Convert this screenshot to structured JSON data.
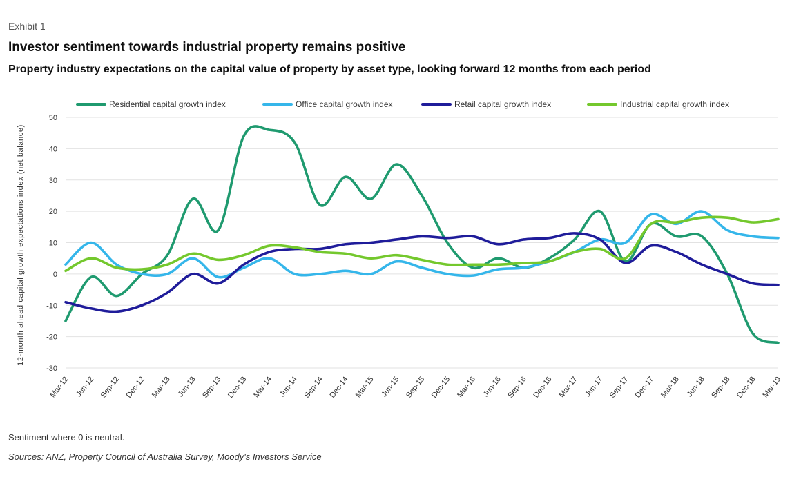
{
  "header": {
    "exhibit": "Exhibit 1",
    "title": "Investor sentiment towards industrial property remains positive",
    "subtitle": "Property industry expectations on the capital value of property by asset type, looking forward 12 months from each period"
  },
  "footer": {
    "note": "Sentiment where 0 is neutral.",
    "source": "Sources: ANZ, Property Council of Australia Survey, Moody's Investors Service"
  },
  "chart_data": {
    "type": "line",
    "ylabel": "12-month ahead capital growth expectations index (net balance)",
    "xlabel": "",
    "ylim": [
      -30,
      50
    ],
    "yticks": [
      50,
      40,
      30,
      20,
      10,
      0,
      -10,
      -20,
      -30
    ],
    "grid": true,
    "legend_position": "top",
    "categories": [
      "Mar-12",
      "Jun-12",
      "Sep-12",
      "Dec-12",
      "Mar-13",
      "Jun-13",
      "Sep-13",
      "Dec-13",
      "Mar-14",
      "Jun-14",
      "Sep-14",
      "Dec-14",
      "Mar-15",
      "Jun-15",
      "Sep-15",
      "Dec-15",
      "Mar-16",
      "Jun-16",
      "Sep-16",
      "Dec-16",
      "Mar-17",
      "Jun-17",
      "Sep-17",
      "Dec-17",
      "Mar-18",
      "Jun-18",
      "Sep-18",
      "Dec-18",
      "Mar-19"
    ],
    "series": [
      {
        "name": "Residential capital growth index",
        "color": "#1f9a6f",
        "values": [
          -15,
          -1,
          -7,
          0,
          6,
          24,
          14,
          44,
          46,
          42,
          22,
          31,
          24,
          35,
          25,
          10,
          2,
          5,
          2,
          5,
          11,
          20,
          4,
          16,
          12,
          12,
          0,
          -19,
          -22
        ]
      },
      {
        "name": "Office capital growth index",
        "color": "#35b6ea",
        "values": [
          3,
          10,
          3,
          0,
          0,
          5,
          -1,
          2,
          5,
          0,
          0,
          1,
          0,
          4,
          2,
          0,
          -0.5,
          1.5,
          2,
          4,
          7,
          11,
          10,
          19,
          16,
          20,
          14,
          12,
          11.5
        ]
      },
      {
        "name": "Retail capital growth index",
        "color": "#1f1c9a",
        "values": [
          -9,
          -11,
          -12,
          -10,
          -6,
          0,
          -3,
          3,
          7,
          8,
          8,
          9.5,
          10,
          11,
          12,
          11.5,
          12,
          9.5,
          11,
          11.5,
          13,
          11,
          3.5,
          9,
          7,
          3,
          0,
          -3,
          -3.5
        ]
      },
      {
        "name": "Industrial capital growth index",
        "color": "#74c82d",
        "values": [
          1,
          5,
          2,
          1.5,
          3,
          6.5,
          4.5,
          6,
          9,
          8.5,
          7,
          6.5,
          5,
          6,
          4.5,
          3,
          3,
          3,
          3.5,
          4,
          7,
          8,
          5,
          16,
          16.5,
          18,
          18,
          16.5,
          17.5
        ]
      }
    ]
  }
}
